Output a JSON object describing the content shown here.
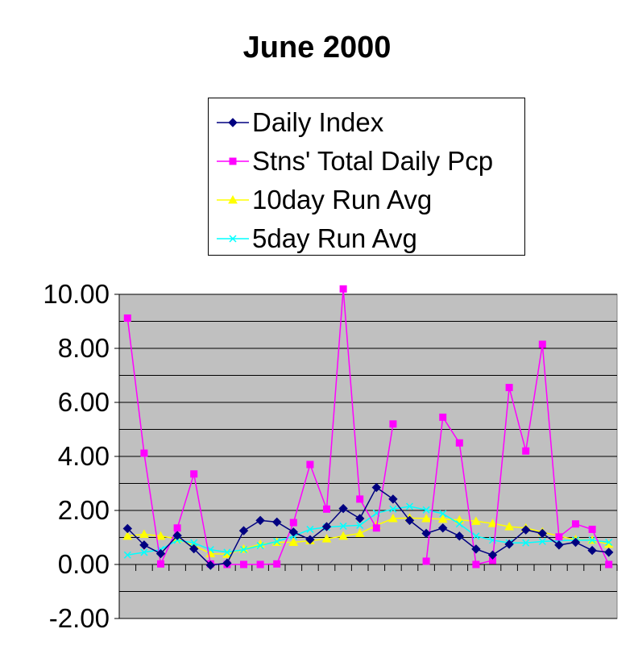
{
  "chart_data": {
    "type": "line",
    "title": "June 2000",
    "xlabel": "",
    "ylabel": "",
    "ylim": [
      -2,
      10
    ],
    "yticks": [
      "10.00",
      "8.00",
      "6.00",
      "4.00",
      "2.00",
      "0.00",
      "-2.00"
    ],
    "ytick_values": [
      10,
      8,
      6,
      4,
      2,
      0,
      -2
    ],
    "grid": true,
    "legend_position": "top",
    "plot_background": "#c0c0c0",
    "x": [
      1,
      2,
      3,
      4,
      5,
      6,
      7,
      8,
      9,
      10,
      11,
      12,
      13,
      14,
      15,
      16,
      17,
      18,
      19,
      20,
      21,
      22,
      23,
      24,
      25,
      26,
      27,
      28,
      29,
      30
    ],
    "series": [
      {
        "name": "Daily Index",
        "color": "#000080",
        "marker": "diamond",
        "values": [
          1.33,
          0.72,
          0.4,
          1.07,
          0.58,
          -0.03,
          0.05,
          1.25,
          1.63,
          1.57,
          1.2,
          0.92,
          1.4,
          2.07,
          1.7,
          2.85,
          2.42,
          1.63,
          1.15,
          1.35,
          1.05,
          0.57,
          0.35,
          0.75,
          1.28,
          1.15,
          0.72,
          0.82,
          0.52,
          0.45
        ]
      },
      {
        "name": "Stns' Total Daily Pcp",
        "color": "#ff00ff",
        "marker": "square",
        "values": [
          9.12,
          4.12,
          0.02,
          1.35,
          3.35,
          0.02,
          0.0,
          0.0,
          0.0,
          0.02,
          1.55,
          3.7,
          2.05,
          10.2,
          2.42,
          1.35,
          5.2,
          null,
          0.12,
          5.45,
          4.5,
          0.0,
          0.15,
          6.55,
          4.2,
          8.15,
          1.02,
          1.5,
          1.3,
          0.0
        ]
      },
      {
        "name": "10day Run Avg",
        "color": "#ffff00",
        "marker": "triangle",
        "values": [
          1.05,
          1.12,
          1.05,
          0.95,
          0.7,
          0.4,
          0.38,
          0.57,
          0.75,
          0.82,
          0.82,
          0.88,
          0.95,
          1.05,
          1.15,
          1.45,
          1.7,
          1.72,
          1.7,
          1.68,
          1.65,
          1.6,
          1.52,
          1.4,
          1.35,
          1.2,
          1.05,
          0.92,
          0.9,
          0.75
        ]
      },
      {
        "name": "5day Run Avg",
        "color": "#00ffff",
        "marker": "x",
        "values": [
          0.35,
          0.45,
          0.55,
          0.9,
          0.8,
          0.55,
          0.45,
          0.55,
          0.7,
          0.85,
          1.05,
          1.3,
          1.38,
          1.42,
          1.45,
          1.9,
          2.05,
          2.15,
          2.02,
          1.88,
          1.5,
          1.05,
          0.9,
          0.8,
          0.8,
          0.85,
          0.88,
          0.9,
          0.9,
          0.82
        ]
      }
    ]
  }
}
